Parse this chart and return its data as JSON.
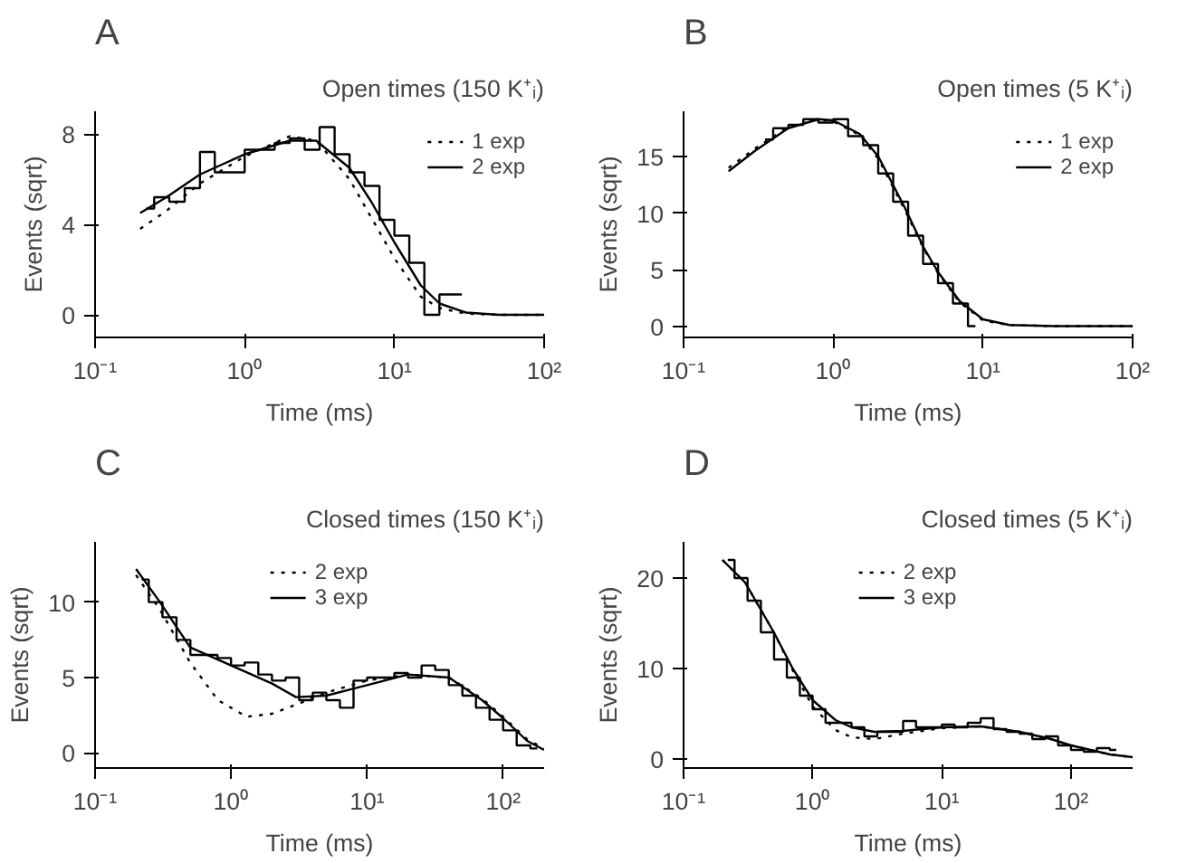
{
  "chart_data": [
    {
      "type": "line",
      "title": "Open times (150 K⁺ᵢ)",
      "xlabel": "Time (ms)",
      "ylabel": "Events (sqrt)",
      "annotations": [
        "A"
      ],
      "log": "x",
      "legend": "top right",
      "xlim": [
        0.1,
        100
      ],
      "xticks": [
        {
          "value": 0.1,
          "label": "10⁻¹"
        },
        {
          "value": 1,
          "label": "10⁰"
        },
        {
          "value": 10,
          "label": "10¹"
        },
        {
          "value": 100,
          "label": "10²"
        }
      ],
      "ylim": [
        -1,
        9
      ],
      "yticks": [
        0,
        4,
        8
      ],
      "series": [
        {
          "type": "step",
          "color": "#000000",
          "line_style": "solid",
          "x": [
            0.22,
            0.28,
            0.35,
            0.45,
            0.56,
            0.71,
            0.89,
            1.12,
            1.41,
            1.78,
            2.24,
            2.82,
            3.55,
            4.47,
            5.62,
            7.08,
            8.91,
            11.2,
            14.1,
            17.8,
            22.4,
            28.2
          ],
          "values": [
            4.7,
            5.2,
            5.0,
            5.6,
            7.2,
            6.3,
            6.3,
            7.3,
            7.3,
            7.6,
            7.8,
            7.3,
            8.3,
            7.1,
            6.3,
            5.7,
            4.2,
            3.5,
            2.3,
            0.0,
            0.9,
            0.9
          ]
        },
        {
          "name": "1 exp",
          "color": "#000000",
          "line_style": "dotted",
          "x": [
            0.2,
            0.3,
            0.5,
            1,
            2,
            3,
            5,
            7,
            10,
            15,
            20,
            30,
            50,
            100
          ],
          "values": [
            3.8,
            4.6,
            5.8,
            7.0,
            7.9,
            7.7,
            6.0,
            4.3,
            2.5,
            0.8,
            0.3,
            0.05,
            0,
            0
          ]
        },
        {
          "name": "2 exp",
          "color": "#000000",
          "line_style": "solid",
          "x": [
            0.2,
            0.3,
            0.5,
            1,
            2,
            3,
            5,
            7,
            10,
            15,
            20,
            30,
            50,
            100
          ],
          "values": [
            4.5,
            5.2,
            6.2,
            7.1,
            7.7,
            7.7,
            6.5,
            5.0,
            3.2,
            1.3,
            0.5,
            0.1,
            0,
            0
          ]
        }
      ]
    },
    {
      "type": "line",
      "title": "Open times (5 K⁺ᵢ)",
      "xlabel": "Time (ms)",
      "ylabel": "Events (sqrt)",
      "annotations": [
        "B"
      ],
      "log": "x",
      "legend": "top right",
      "xlim": [
        0.1,
        100
      ],
      "xticks": [
        {
          "value": 0.1,
          "label": "10⁻¹"
        },
        {
          "value": 1,
          "label": "10⁰"
        },
        {
          "value": 10,
          "label": "10¹"
        },
        {
          "value": 100,
          "label": "10²"
        }
      ],
      "ylim": [
        -1,
        19
      ],
      "yticks": [
        0,
        5,
        10,
        15
      ],
      "series": [
        {
          "type": "step",
          "color": "#000000",
          "line_style": "solid",
          "x": [
            0.35,
            0.45,
            0.56,
            0.71,
            0.89,
            1.12,
            1.41,
            1.78,
            2.24,
            2.82,
            3.55,
            4.47,
            5.62,
            7.08,
            8.91
          ],
          "values": [
            16.5,
            17.5,
            17.8,
            18.3,
            18.0,
            18.3,
            16.8,
            16.0,
            13.5,
            11.0,
            8.0,
            5.5,
            3.8,
            2.0,
            0.0
          ]
        },
        {
          "name": "1 exp",
          "color": "#000000",
          "line_style": "dotted",
          "x": [
            0.2,
            0.3,
            0.5,
            0.8,
            1,
            1.5,
            2,
            3,
            4,
            5,
            7,
            10,
            15,
            30,
            100
          ],
          "values": [
            14.0,
            15.7,
            17.6,
            18.3,
            18.1,
            16.9,
            14.8,
            10.3,
            6.9,
            4.7,
            2.1,
            0.5,
            0.1,
            0,
            0
          ]
        },
        {
          "name": "2 exp",
          "color": "#000000",
          "line_style": "solid",
          "x": [
            0.2,
            0.3,
            0.5,
            0.8,
            1,
            1.5,
            2,
            3,
            4,
            5,
            7,
            10,
            15,
            30,
            100
          ],
          "values": [
            13.7,
            15.5,
            17.5,
            18.3,
            18.2,
            17.0,
            15.0,
            10.5,
            7.0,
            4.8,
            2.2,
            0.6,
            0.1,
            0,
            0
          ]
        }
      ]
    },
    {
      "type": "line",
      "title": "Closed times (150 K⁺ᵢ)",
      "xlabel": "Time (ms)",
      "ylabel": "Events (sqrt)",
      "annotations": [
        "C"
      ],
      "log": "x",
      "legend": "top",
      "xlim": [
        0.1,
        200
      ],
      "xticks": [
        {
          "value": 0.1,
          "label": "10⁻¹"
        },
        {
          "value": 1,
          "label": "10⁰"
        },
        {
          "value": 10,
          "label": "10¹"
        },
        {
          "value": 100,
          "label": "10²"
        }
      ],
      "ylim": [
        -1,
        14
      ],
      "yticks": [
        0,
        5,
        10
      ],
      "series": [
        {
          "type": "step",
          "color": "#000000",
          "line_style": "solid",
          "x": [
            0.22,
            0.28,
            0.35,
            0.45,
            0.56,
            0.71,
            0.89,
            1.12,
            1.41,
            1.78,
            2.24,
            2.82,
            3.55,
            4.47,
            5.62,
            7.08,
            8.91,
            11.2,
            14.1,
            17.8,
            22.4,
            28.2,
            35.5,
            44.7,
            56.2,
            70.8,
            89.1,
            112,
            141,
            178
          ],
          "values": [
            11.5,
            10.0,
            9.0,
            7.5,
            6.5,
            6.5,
            6.3,
            5.8,
            6.0,
            5.2,
            4.8,
            5.0,
            3.5,
            4.0,
            3.5,
            3.0,
            4.8,
            5.0,
            5.0,
            5.3,
            5.0,
            5.8,
            5.5,
            4.5,
            3.8,
            3.0,
            2.2,
            1.5,
            0.5,
            0.3
          ]
        },
        {
          "name": "2 exp",
          "color": "#000000",
          "line_style": "dotted",
          "x": [
            0.2,
            0.3,
            0.5,
            0.8,
            1.3,
            2,
            3,
            5,
            10,
            20,
            40,
            70,
            100,
            150,
            200
          ],
          "values": [
            11.8,
            9.5,
            6.0,
            3.5,
            2.4,
            2.6,
            3.2,
            4.0,
            4.8,
            5.2,
            5.0,
            3.6,
            2.4,
            0.9,
            0.3
          ]
        },
        {
          "name": "3 exp",
          "color": "#000000",
          "line_style": "solid",
          "x": [
            0.2,
            0.3,
            0.5,
            1,
            2,
            3,
            5,
            10,
            20,
            40,
            70,
            100,
            150,
            200
          ],
          "values": [
            12.2,
            10.0,
            7.0,
            5.8,
            4.6,
            3.7,
            3.8,
            4.5,
            5.2,
            5.0,
            3.5,
            2.3,
            0.8,
            0.2
          ]
        }
      ]
    },
    {
      "type": "line",
      "title": "Closed times (5 K⁺ᵢ)",
      "xlabel": "Time (ms)",
      "ylabel": "Events (sqrt)",
      "annotations": [
        "D"
      ],
      "log": "x",
      "legend": "top",
      "xlim": [
        0.1,
        300
      ],
      "xticks": [
        {
          "value": 0.1,
          "label": "10⁻¹"
        },
        {
          "value": 1,
          "label": "10⁰"
        },
        {
          "value": 10,
          "label": "10¹"
        },
        {
          "value": 100,
          "label": "10²"
        }
      ],
      "ylim": [
        -1,
        24
      ],
      "yticks": [
        0,
        10,
        20
      ],
      "series": [
        {
          "type": "step",
          "color": "#000000",
          "line_style": "solid",
          "x": [
            0.22,
            0.28,
            0.35,
            0.45,
            0.56,
            0.71,
            0.89,
            1.12,
            1.41,
            1.78,
            2.24,
            2.82,
            3.55,
            4.47,
            5.62,
            7.08,
            8.91,
            11.2,
            14.1,
            17.8,
            22.4,
            28.2,
            35.5,
            44.7,
            56.2,
            70.8,
            89.1,
            112,
            141,
            178,
            224
          ],
          "values": [
            22,
            20,
            17.5,
            14,
            11,
            9,
            7,
            5.5,
            4,
            4,
            3.5,
            2.5,
            3,
            3,
            4.2,
            3.5,
            3.5,
            3.8,
            3.5,
            4.0,
            4.5,
            3.3,
            3.0,
            2.8,
            2.2,
            2.5,
            1.5,
            1.0,
            0.8,
            1.2,
            1.0
          ]
        },
        {
          "name": "2 exp",
          "color": "#000000",
          "line_style": "dotted",
          "x": [
            0.2,
            0.3,
            0.5,
            0.7,
            1,
            1.5,
            2,
            3,
            5,
            10,
            20,
            40,
            70,
            100,
            200,
            300
          ],
          "values": [
            22,
            19.5,
            14,
            9.8,
            5.8,
            3.2,
            2.4,
            2.2,
            2.8,
            3.4,
            3.6,
            3.0,
            2.2,
            1.5,
            0.5,
            0.2
          ]
        },
        {
          "name": "3 exp",
          "color": "#000000",
          "line_style": "solid",
          "x": [
            0.2,
            0.3,
            0.5,
            0.7,
            1,
            1.5,
            2,
            3,
            5,
            10,
            20,
            40,
            70,
            100,
            200,
            300
          ],
          "values": [
            22,
            19.5,
            14,
            10,
            6.5,
            4.3,
            3.5,
            3.0,
            3.1,
            3.5,
            3.6,
            3.0,
            2.2,
            1.5,
            0.5,
            0.2
          ]
        }
      ]
    }
  ]
}
